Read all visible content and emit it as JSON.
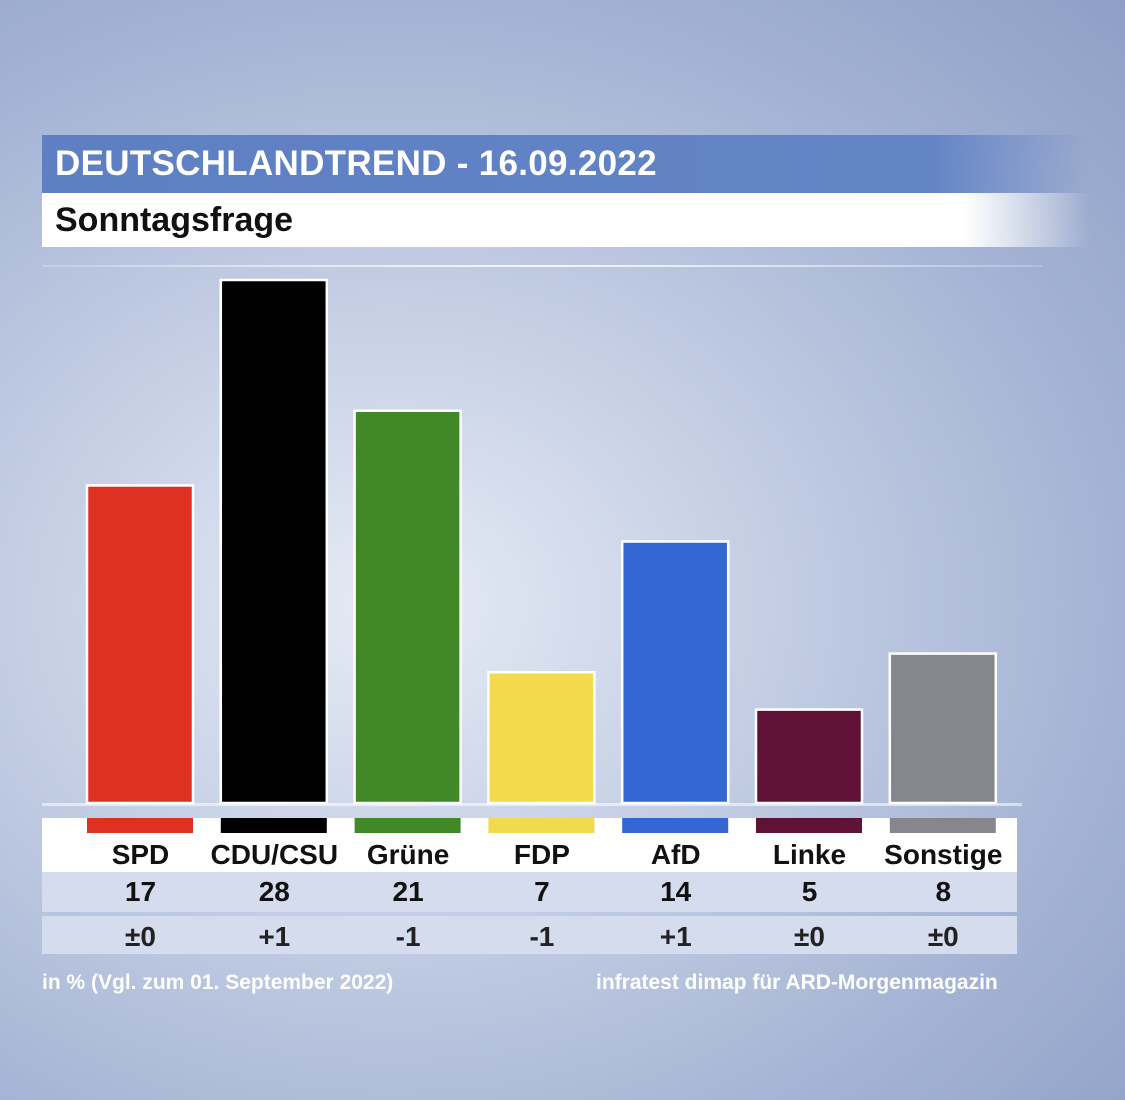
{
  "header": {
    "title": "DEUTSCHLANDTREND - 16.09.2022",
    "subtitle": "Sonntagsfrage"
  },
  "chart_data": {
    "type": "bar",
    "categories": [
      "SPD",
      "CDU/CSU",
      "Grüne",
      "FDP",
      "AfD",
      "Linke",
      "Sonstige"
    ],
    "values": [
      17,
      28,
      21,
      7,
      14,
      5,
      8
    ],
    "value_labels": [
      "17",
      "28",
      "21",
      "7",
      "14",
      "5",
      "8"
    ],
    "changes": [
      "±0",
      "+1",
      "-1",
      "-1",
      "+1",
      "±0",
      "±0"
    ],
    "colors": [
      "#de3121",
      "#000000",
      "#418827",
      "#f2d94e",
      "#3466d4",
      "#5f1136",
      "#86878c"
    ],
    "ylim": [
      0,
      28
    ],
    "grid": false
  },
  "footer": {
    "note": "in % (Vgl. zum 01. September 2022)",
    "source": "infratest dimap für ARD-Morgenmagazin"
  }
}
